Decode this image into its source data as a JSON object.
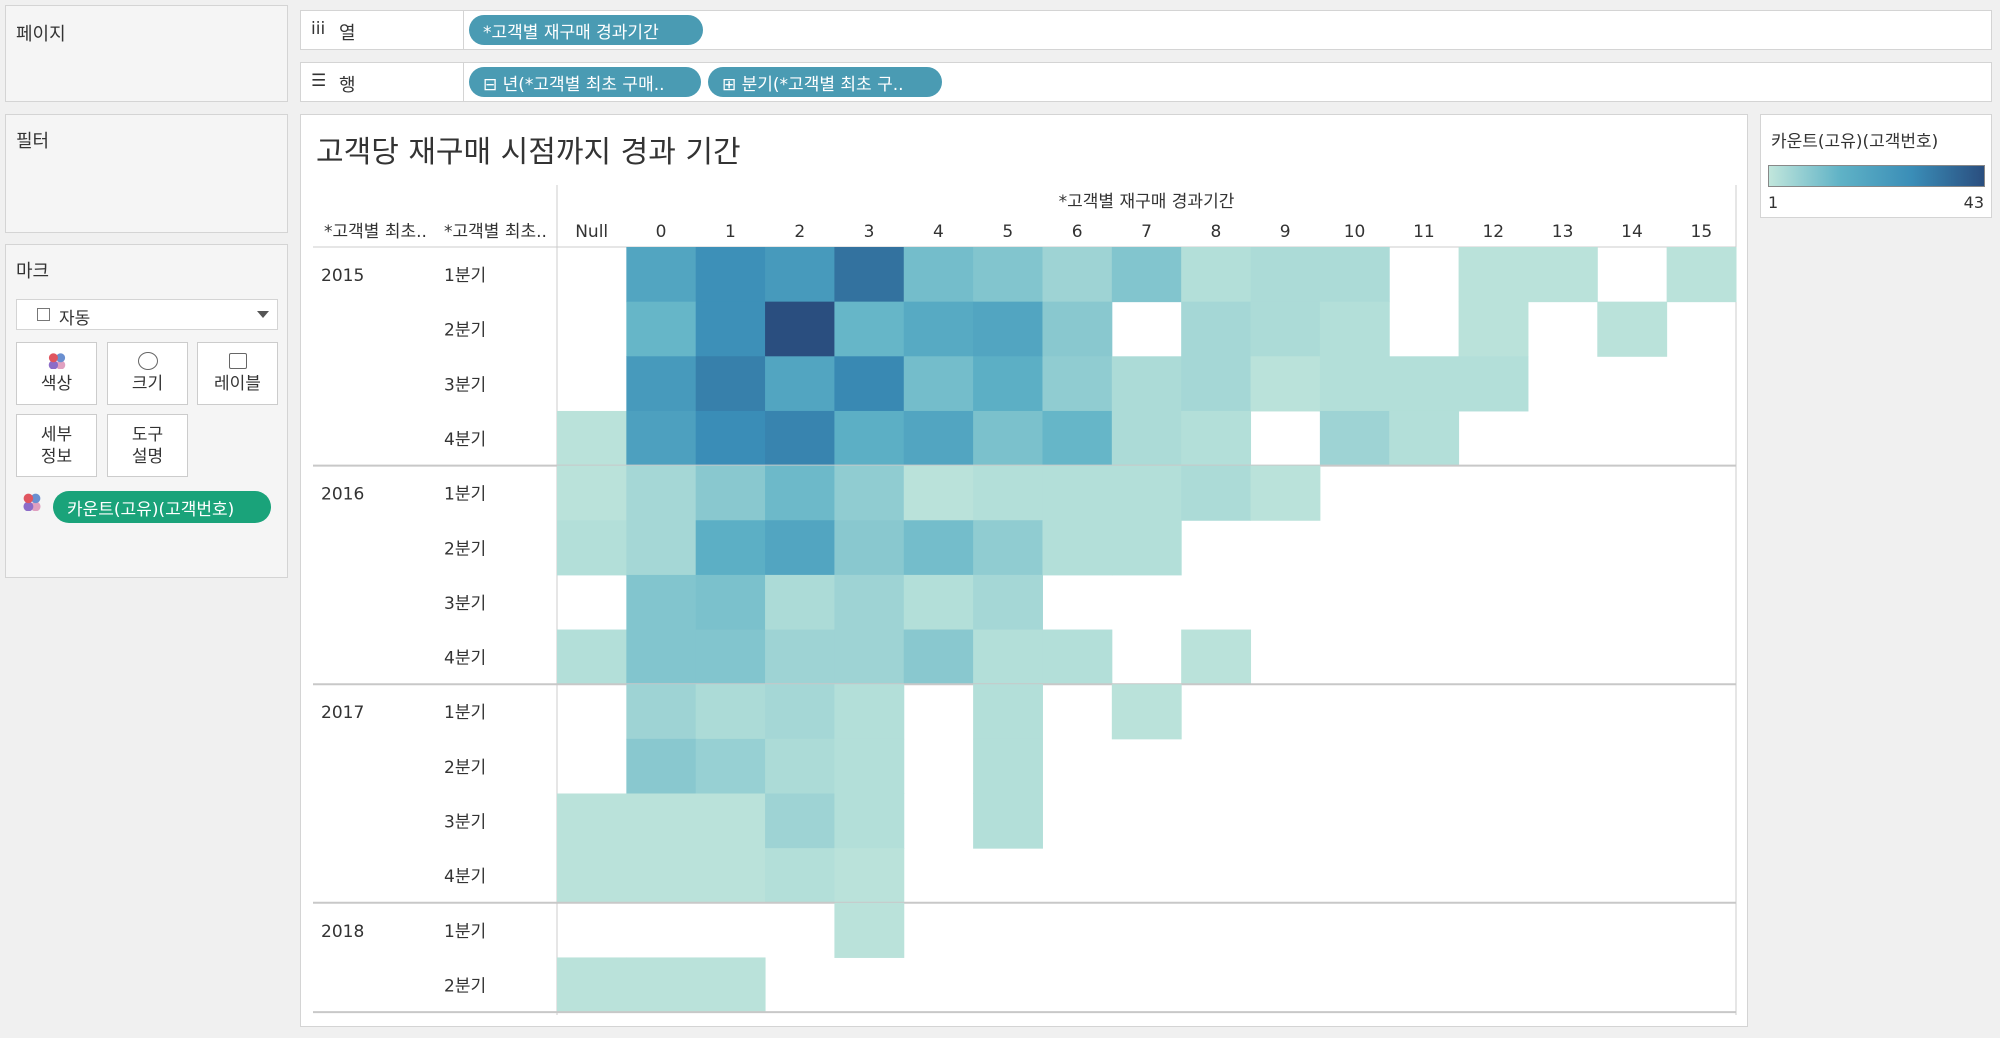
{
  "shelves": {
    "pages": "페이지",
    "filters": "필터",
    "columns": {
      "label": "열",
      "pills": [
        "*고객별 재구매 경과기간"
      ]
    },
    "rows": {
      "label": "행",
      "pills": [
        "⊟ 년(*고객별 최초 구매..",
        "⊞ 분기(*고객별 최초 구.."
      ]
    }
  },
  "marks": {
    "title": "마크",
    "dropdown": "자동",
    "buttons": [
      "색상",
      "크기",
      "레이블",
      "세부\n정보",
      "도구\n설명"
    ],
    "pill": "카운트(고유)(고객번호)"
  },
  "view": {
    "title": "고객당 재구매 시점까지 경과 기간",
    "column_header": "*고객별 재구매 경과기간",
    "row_headers": [
      "*고객별 최초..",
      "*고객별 최초.."
    ],
    "columns": [
      "Null",
      "0",
      "1",
      "2",
      "3",
      "4",
      "5",
      "6",
      "7",
      "8",
      "9",
      "10",
      "11",
      "12",
      "13",
      "14",
      "15"
    ],
    "row_groups": [
      {
        "year": "2015",
        "quarters": [
          "1분기",
          "2분기",
          "3분기",
          "4분기"
        ],
        "values": [
          [
            null,
            20,
            28,
            24,
            35,
            12,
            10,
            6,
            10,
            3,
            4,
            4,
            null,
            2,
            2,
            null,
            2
          ],
          [
            null,
            14,
            28,
            43,
            14,
            18,
            20,
            9,
            null,
            5,
            4,
            3,
            null,
            2,
            null,
            2,
            null
          ],
          [
            null,
            24,
            32,
            20,
            30,
            12,
            16,
            8,
            4,
            5,
            2,
            3,
            3,
            3,
            null,
            null,
            null
          ],
          [
            2,
            22,
            29,
            31,
            16,
            20,
            11,
            14,
            4,
            3,
            null,
            6,
            3,
            null,
            null,
            null,
            null
          ]
        ]
      },
      {
        "year": "2016",
        "quarters": [
          "1분기",
          "2분기",
          "3분기",
          "4분기"
        ],
        "values": [
          [
            2,
            5,
            9,
            13,
            8,
            2,
            3,
            3,
            3,
            4,
            2,
            null,
            null,
            null,
            null,
            null,
            null
          ],
          [
            3,
            5,
            16,
            20,
            9,
            12,
            8,
            3,
            3,
            null,
            null,
            null,
            null,
            null,
            null,
            null,
            null
          ],
          [
            null,
            10,
            11,
            4,
            6,
            3,
            5,
            null,
            null,
            null,
            null,
            null,
            null,
            null,
            null,
            null,
            null
          ],
          [
            3,
            10,
            10,
            6,
            6,
            9,
            3,
            3,
            null,
            2,
            null,
            null,
            null,
            null,
            null,
            null,
            null
          ]
        ]
      },
      {
        "year": "2017",
        "quarters": [
          "1분기",
          "2분기",
          "3분기",
          "4분기"
        ],
        "values": [
          [
            null,
            6,
            4,
            5,
            3,
            null,
            3,
            null,
            2,
            null,
            null,
            null,
            null,
            null,
            null,
            null,
            null
          ],
          [
            null,
            9,
            7,
            4,
            3,
            null,
            3,
            null,
            null,
            null,
            null,
            null,
            null,
            null,
            null,
            null,
            null
          ],
          [
            2,
            2,
            2,
            6,
            3,
            null,
            3,
            null,
            null,
            null,
            null,
            null,
            null,
            null,
            null,
            null,
            null
          ],
          [
            2,
            2,
            2,
            3,
            2,
            null,
            null,
            null,
            null,
            null,
            null,
            null,
            null,
            null,
            null,
            null,
            null
          ]
        ]
      },
      {
        "year": "2018",
        "quarters": [
          "1분기",
          "2분기"
        ],
        "values": [
          [
            null,
            null,
            null,
            null,
            2,
            null,
            null,
            null,
            null,
            null,
            null,
            null,
            null,
            null,
            null,
            null,
            null
          ],
          [
            2,
            2,
            2,
            null,
            null,
            null,
            null,
            null,
            null,
            null,
            null,
            null,
            null,
            null,
            null,
            null,
            null
          ]
        ]
      }
    ]
  },
  "legend": {
    "title": "카운트(고유)(고객번호)",
    "min": 1,
    "max": 43,
    "colors": [
      "#c1e6dc",
      "#5fb2c6",
      "#3a8db7",
      "#2a4e7f"
    ]
  }
}
